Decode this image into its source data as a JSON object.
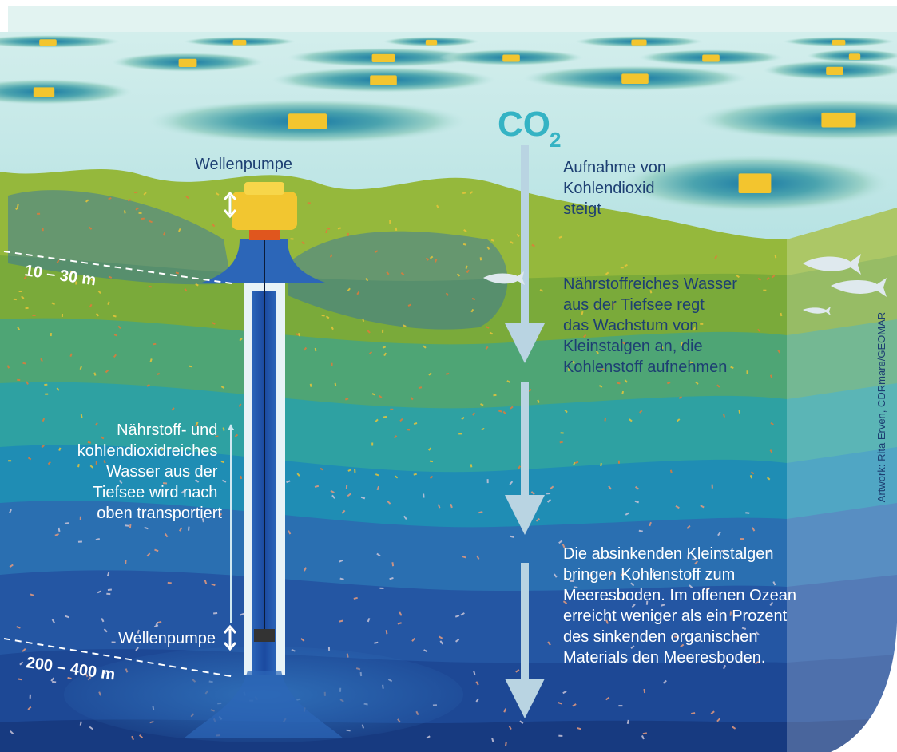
{
  "pump_top_label": "Wellenpumpe",
  "co2": {
    "main": "CO",
    "sub": "2"
  },
  "uptake": [
    "Aufnahme von",
    "Kohlendioxid",
    "steigt"
  ],
  "depth_top": "10 – 30 m",
  "nutrients": [
    "Nährstoffreiches Wasser",
    "aus der Tiefsee regt",
    "das Wachstum von",
    "Kleinstalgen an, die",
    "Kohlenstoff aufnehmen"
  ],
  "upwelling": [
    "Nährstoff- und",
    "kohlendioxidreiches",
    "Wasser aus der",
    "Tiefsee wird nach",
    "oben transportiert"
  ],
  "pump_bottom_label": "Wellenpumpe",
  "depth_bottom": "200 – 400 m",
  "sinking": [
    "Die absinkenden Kleinstalgen",
    "bringen Kohlenstoff zum",
    "Meeresboden. Im offenen Ozean",
    "erreicht weniger als ein Prozent",
    "des sinkenden organischen",
    "Materials den Meeresboden."
  ],
  "credit": "Artwork: Rita Erven, CDRmare/GEOMAR"
}
